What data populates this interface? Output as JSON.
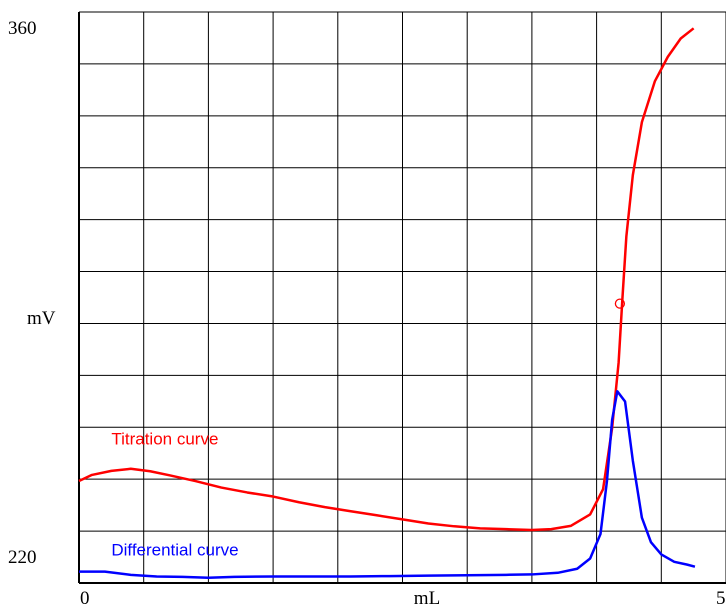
{
  "chart_data": {
    "type": "line",
    "xlabel": "mL",
    "ylabel": "mV",
    "xlim": [
      0,
      5
    ],
    "ylim": [
      220,
      360
    ],
    "x_ticks": [
      "0",
      "5"
    ],
    "y_ticks": [
      "220",
      "360"
    ],
    "grid": true,
    "grid_divisions": {
      "x": 10,
      "y": 11
    },
    "colors": {
      "titration": "#ff0000",
      "differential": "#0000ff",
      "grid": "#000000"
    },
    "series": [
      {
        "name": "Titration curve",
        "color": "#ff0000",
        "points": [
          [
            0.0,
            245.0
          ],
          [
            0.1,
            246.5
          ],
          [
            0.25,
            247.5
          ],
          [
            0.4,
            248.0
          ],
          [
            0.55,
            247.4
          ],
          [
            0.7,
            246.4
          ],
          [
            0.9,
            245.0
          ],
          [
            1.1,
            243.4
          ],
          [
            1.3,
            242.2
          ],
          [
            1.5,
            241.2
          ],
          [
            1.7,
            239.8
          ],
          [
            1.9,
            238.6
          ],
          [
            2.1,
            237.6
          ],
          [
            2.3,
            236.6
          ],
          [
            2.5,
            235.6
          ],
          [
            2.7,
            234.6
          ],
          [
            2.9,
            233.9
          ],
          [
            3.1,
            233.4
          ],
          [
            3.3,
            233.2
          ],
          [
            3.5,
            233.0
          ],
          [
            3.65,
            233.2
          ],
          [
            3.8,
            234.0
          ],
          [
            3.95,
            236.8
          ],
          [
            4.05,
            243.0
          ],
          [
            4.12,
            258.0
          ],
          [
            4.17,
            274.0
          ],
          [
            4.2,
            290.0
          ],
          [
            4.23,
            305.0
          ],
          [
            4.28,
            320.0
          ],
          [
            4.35,
            333.0
          ],
          [
            4.45,
            343.0
          ],
          [
            4.55,
            349.0
          ],
          [
            4.65,
            353.5
          ],
          [
            4.75,
            356.0
          ]
        ]
      },
      {
        "name": "Differential curve",
        "color": "#0000ff",
        "points": [
          [
            0.0,
            222.8
          ],
          [
            0.2,
            222.8
          ],
          [
            0.4,
            222.0
          ],
          [
            0.6,
            221.6
          ],
          [
            0.8,
            221.5
          ],
          [
            1.0,
            221.3
          ],
          [
            1.2,
            221.5
          ],
          [
            1.5,
            221.6
          ],
          [
            1.8,
            221.6
          ],
          [
            2.1,
            221.6
          ],
          [
            2.4,
            221.7
          ],
          [
            2.7,
            221.8
          ],
          [
            3.0,
            221.9
          ],
          [
            3.3,
            222.0
          ],
          [
            3.5,
            222.1
          ],
          [
            3.7,
            222.5
          ],
          [
            3.85,
            223.5
          ],
          [
            3.95,
            226.0
          ],
          [
            4.03,
            232.0
          ],
          [
            4.08,
            245.0
          ],
          [
            4.12,
            260.0
          ],
          [
            4.16,
            267.0
          ],
          [
            4.22,
            264.5
          ],
          [
            4.28,
            250.0
          ],
          [
            4.35,
            236.0
          ],
          [
            4.42,
            230.0
          ],
          [
            4.5,
            227.0
          ],
          [
            4.6,
            225.2
          ],
          [
            4.7,
            224.5
          ],
          [
            4.76,
            224.0
          ]
        ]
      }
    ],
    "equivalence_point": {
      "x": 4.18,
      "y": 288.5
    },
    "annotations": [
      {
        "series": "Titration curve",
        "text": "Titration curve",
        "x": 0.25,
        "y": 254.0
      },
      {
        "series": "Differential curve",
        "text": "Differential curve",
        "x": 0.25,
        "y": 226.8
      }
    ]
  }
}
